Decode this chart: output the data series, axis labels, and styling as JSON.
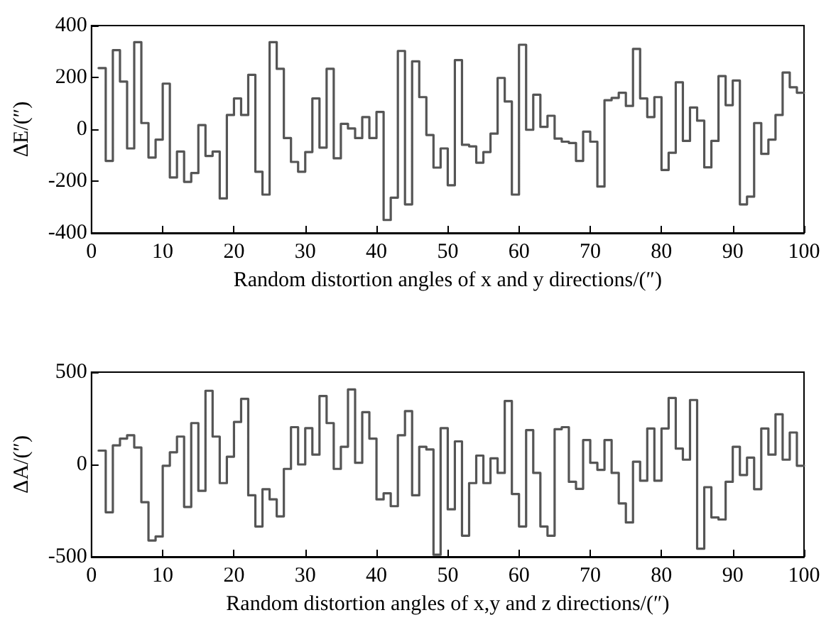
{
  "chart_data": [
    {
      "type": "step",
      "xlabel": "Random distortion angles of x and y directions/(″)",
      "ylabel": "ΔE/(″)",
      "x": [
        1,
        2,
        3,
        4,
        5,
        6,
        7,
        8,
        9,
        10,
        11,
        12,
        13,
        14,
        15,
        16,
        17,
        18,
        19,
        20,
        21,
        22,
        23,
        24,
        25,
        26,
        27,
        28,
        29,
        30,
        31,
        32,
        33,
        34,
        35,
        36,
        37,
        38,
        39,
        40,
        41,
        42,
        43,
        44,
        45,
        46,
        47,
        48,
        49,
        50,
        51,
        52,
        53,
        54,
        55,
        56,
        57,
        58,
        59,
        60,
        61,
        62,
        63,
        64,
        65,
        66,
        67,
        68,
        69,
        70,
        71,
        72,
        73,
        74,
        75,
        76,
        77,
        78,
        79,
        80,
        81,
        82,
        83,
        84,
        85,
        86,
        87,
        88,
        89,
        90,
        91,
        92,
        93,
        94,
        95,
        96,
        97,
        98,
        99,
        100
      ],
      "series": [
        {
          "color": "#555555",
          "values": [
            236,
            -122,
            305,
            184,
            -74,
            336,
            24,
            -109,
            -40,
            176,
            -186,
            -86,
            -203,
            -169,
            16,
            -103,
            -86,
            -267,
            55,
            119,
            55,
            210,
            -164,
            -252,
            336,
            233,
            -34,
            -126,
            -164,
            -88,
            119,
            -71,
            233,
            -112,
            21,
            3,
            -34,
            47,
            -34,
            67,
            -350,
            -264,
            302,
            -290,
            262,
            124,
            -22,
            -148,
            -74,
            -216,
            267,
            -60,
            -66,
            -129,
            -88,
            -17,
            198,
            107,
            -252,
            326,
            -2,
            133,
            9,
            52,
            -36,
            -48,
            -53,
            -122,
            -9,
            -48,
            -221,
            112,
            121,
            141,
            90,
            310,
            119,
            47,
            124,
            -157,
            -91,
            181,
            -45,
            84,
            33,
            -147,
            -45,
            205,
            93,
            188,
            -290,
            -260,
            24,
            -95,
            -40,
            55,
            219,
            162,
            141,
            141
          ]
        }
      ],
      "xlim": [
        0,
        100
      ],
      "xticks": [
        0,
        10,
        20,
        30,
        40,
        50,
        60,
        70,
        80,
        90,
        100
      ],
      "ylim": [
        -400,
        400
      ],
      "yticks": [
        -400,
        -200,
        0,
        200,
        400
      ],
      "grid": false
    },
    {
      "type": "step",
      "xlabel": "Random distortion angles of x,y and z directions/(″)",
      "ylabel": "ΔA/(″)",
      "x": [
        1,
        2,
        3,
        4,
        5,
        6,
        7,
        8,
        9,
        10,
        11,
        12,
        13,
        14,
        15,
        16,
        17,
        18,
        19,
        20,
        21,
        22,
        23,
        24,
        25,
        26,
        27,
        28,
        29,
        30,
        31,
        32,
        33,
        34,
        35,
        36,
        37,
        38,
        39,
        40,
        41,
        42,
        43,
        44,
        45,
        46,
        47,
        48,
        49,
        50,
        51,
        52,
        53,
        54,
        55,
        56,
        57,
        58,
        59,
        60,
        61,
        62,
        63,
        64,
        65,
        66,
        67,
        68,
        69,
        70,
        71,
        72,
        73,
        74,
        75,
        76,
        77,
        78,
        79,
        80,
        81,
        82,
        83,
        84,
        85,
        86,
        87,
        88,
        89,
        90,
        91,
        92,
        93,
        94,
        95,
        96,
        97,
        98,
        99,
        100
      ],
      "series": [
        {
          "color": "#555555",
          "values": [
            75,
            -259,
            103,
            140,
            158,
            92,
            -204,
            -412,
            -390,
            -7,
            66,
            151,
            -230,
            224,
            -143,
            399,
            151,
            -101,
            42,
            230,
            355,
            -167,
            -336,
            -134,
            -189,
            -281,
            -24,
            202,
            0,
            197,
            53,
            371,
            224,
            -24,
            96,
            406,
            9,
            283,
            140,
            -189,
            -156,
            -226,
            158,
            289,
            -167,
            96,
            81,
            -489,
            197,
            -243,
            125,
            -386,
            -101,
            48,
            -101,
            33,
            -46,
            344,
            -160,
            -336,
            186,
            -46,
            -336,
            -386,
            191,
            202,
            -94,
            -132,
            132,
            9,
            -29,
            132,
            -46,
            -211,
            -314,
            15,
            -88,
            195,
            -88,
            195,
            360,
            86,
            26,
            349,
            -456,
            -123,
            -287,
            -298,
            -94,
            96,
            -57,
            37,
            -134,
            195,
            53,
            272,
            26,
            173,
            -7,
            -7
          ]
        }
      ],
      "xlim": [
        0,
        100
      ],
      "xticks": [
        0,
        10,
        20,
        30,
        40,
        50,
        60,
        70,
        80,
        90,
        100
      ],
      "ylim": [
        -500,
        500
      ],
      "yticks": [
        -500,
        0,
        500
      ],
      "grid": false
    }
  ]
}
